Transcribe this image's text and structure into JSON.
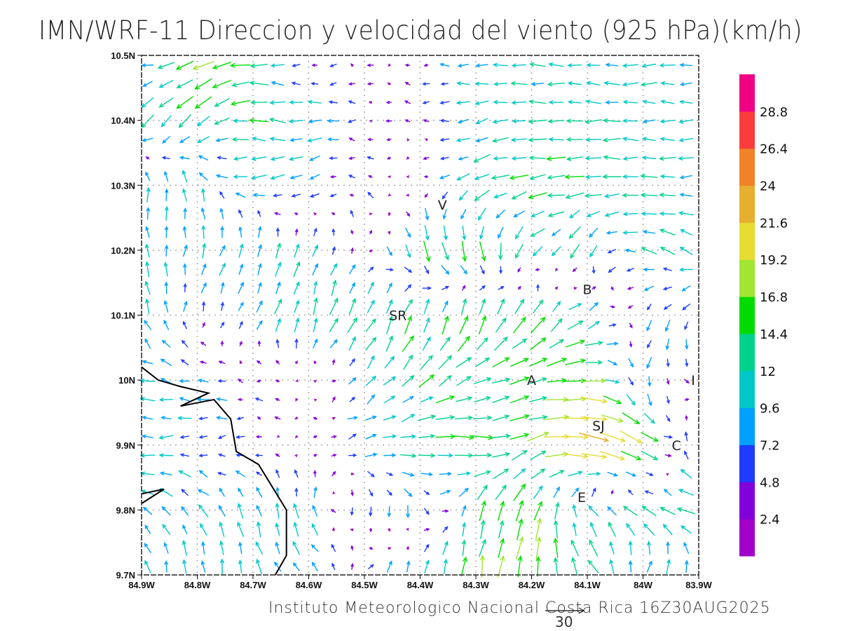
{
  "title": "IMN/WRF-11 Direccion y velocidad del viento (925 hPa)(km/h)",
  "footer": "Instituto Meteorologico Nacional Costa Rica  16Z30AUG2025",
  "chart_data": {
    "type": "vector-field",
    "units": "km/h",
    "xlim": [
      -84.9,
      -83.9
    ],
    "ylim": [
      9.7,
      10.5
    ],
    "x_ticks": [
      "84.9W",
      "84.8W",
      "84.7W",
      "84.6W",
      "84.5W",
      "84.4W",
      "84.3W",
      "84.2W",
      "84.1W",
      "84W",
      "83.9W"
    ],
    "y_ticks": [
      "10.5N",
      "10.4N",
      "10.3N",
      "10.2N",
      "10.1N",
      "10N",
      "9.9N",
      "9.8N",
      "9.7N"
    ],
    "grid": true,
    "reference_vector": {
      "label": "30",
      "value": 30
    },
    "colorbar": {
      "labels": [
        "2.4",
        "4.8",
        "7.2",
        "9.6",
        "12",
        "14.4",
        "16.8",
        "19.2",
        "21.6",
        "24",
        "26.4",
        "28.8"
      ],
      "colors": [
        "#a000c8",
        "#8200dc",
        "#1e3cff",
        "#00a0ff",
        "#00c8c8",
        "#00d28c",
        "#00dc00",
        "#a0e632",
        "#e6dc32",
        "#e6af2d",
        "#f08228",
        "#fa3c3c",
        "#f00082"
      ],
      "step": 2.4
    },
    "places": [
      {
        "label": "V",
        "lon": -84.36,
        "lat": 10.27
      },
      {
        "label": "SR",
        "lon": -84.44,
        "lat": 10.1
      },
      {
        "label": "B",
        "lon": -84.1,
        "lat": 10.14
      },
      {
        "label": "A",
        "lon": -84.2,
        "lat": 10.0
      },
      {
        "label": "I",
        "lon": -83.91,
        "lat": 10.0
      },
      {
        "label": "SJ",
        "lon": -84.08,
        "lat": 9.93
      },
      {
        "label": "C",
        "lon": -83.94,
        "lat": 9.9
      },
      {
        "label": "E",
        "lon": -84.11,
        "lat": 9.82
      }
    ],
    "coastline": [
      [
        -84.9,
        10.02
      ],
      [
        -84.87,
        10.0
      ],
      [
        -84.83,
        9.99
      ],
      [
        -84.78,
        9.98
      ],
      [
        -84.83,
        9.96
      ],
      [
        -84.77,
        9.97
      ],
      [
        -84.74,
        9.94
      ],
      [
        -84.73,
        9.89
      ],
      [
        -84.69,
        9.87
      ],
      [
        -84.64,
        9.8
      ],
      [
        -84.64,
        9.73
      ],
      [
        -84.66,
        9.7
      ]
    ],
    "coastline2": [
      [
        -84.9,
        9.825
      ],
      [
        -84.86,
        9.832
      ],
      [
        -84.9,
        9.81
      ]
    ],
    "wind_grid_uv_rows_north_to_south": [
      [
        [
          -8,
          2
        ],
        [
          -15,
          -8
        ],
        [
          -15,
          0
        ],
        [
          -3,
          0
        ],
        [
          -3,
          0
        ],
        [
          -3,
          0
        ],
        [
          -9,
          0
        ],
        [
          -10,
          0
        ],
        [
          -10,
          1
        ],
        [
          -10,
          0
        ],
        [
          -10,
          0
        ]
      ],
      [
        [
          -9,
          -8
        ],
        [
          -10,
          -10
        ],
        [
          -13,
          2
        ],
        [
          -11,
          0
        ],
        [
          -3,
          0
        ],
        [
          -2,
          1
        ],
        [
          -10,
          -3
        ],
        [
          -12,
          0
        ],
        [
          -12,
          0
        ],
        [
          -11,
          0
        ],
        [
          -10,
          0
        ]
      ],
      [
        [
          0,
          10
        ],
        [
          -3,
          10
        ],
        [
          -10,
          -2
        ],
        [
          -7,
          -5
        ],
        [
          -3,
          3
        ],
        [
          -1,
          -1
        ],
        [
          -12,
          -5
        ],
        [
          -13,
          -2
        ],
        [
          -13,
          0
        ],
        [
          -11,
          0
        ],
        [
          -10,
          0
        ]
      ],
      [
        [
          -3,
          10
        ],
        [
          3,
          10
        ],
        [
          4,
          10
        ],
        [
          3,
          10
        ],
        [
          2,
          4
        ],
        [
          5,
          -16
        ],
        [
          3,
          -14
        ],
        [
          -8,
          -8
        ],
        [
          -5,
          -10
        ],
        [
          -10,
          4
        ],
        [
          -10,
          4
        ]
      ],
      [
        [
          -3,
          10
        ],
        [
          2,
          6
        ],
        [
          3,
          8
        ],
        [
          4,
          12
        ],
        [
          6,
          12
        ],
        [
          5,
          14
        ],
        [
          4,
          14
        ],
        [
          8,
          12
        ],
        [
          10,
          8
        ],
        [
          -3,
          -6
        ],
        [
          -4,
          -8
        ]
      ],
      [
        [
          -10,
          2
        ],
        [
          -8,
          2
        ],
        [
          -3,
          1
        ],
        [
          -2,
          -1
        ],
        [
          6,
          7
        ],
        [
          10,
          8
        ],
        [
          12,
          6
        ],
        [
          14,
          4
        ],
        [
          19,
          1
        ],
        [
          -2,
          -8
        ],
        [
          4,
          -4
        ]
      ],
      [
        [
          -10,
          0
        ],
        [
          -8,
          -1
        ],
        [
          -6,
          0
        ],
        [
          3,
          1
        ],
        [
          8,
          2
        ],
        [
          14,
          1
        ],
        [
          16,
          -2
        ],
        [
          14,
          6
        ],
        [
          24,
          -6
        ],
        [
          20,
          -10
        ],
        [
          -8,
          12
        ]
      ],
      [
        [
          -8,
          6
        ],
        [
          -6,
          8
        ],
        [
          -4,
          10
        ],
        [
          -2,
          10
        ],
        [
          -1,
          -8
        ],
        [
          2,
          -8
        ],
        [
          4,
          14
        ],
        [
          6,
          15
        ],
        [
          -5,
          10
        ],
        [
          -12,
          6
        ],
        [
          -12,
          4
        ]
      ],
      [
        [
          -2,
          11
        ],
        [
          0,
          11
        ],
        [
          -2,
          11
        ],
        [
          -6,
          6
        ],
        [
          4,
          6
        ],
        [
          2,
          12
        ],
        [
          2,
          15
        ],
        [
          3,
          18
        ],
        [
          -8,
          12
        ],
        [
          6,
          10
        ],
        [
          4,
          12
        ]
      ]
    ]
  }
}
